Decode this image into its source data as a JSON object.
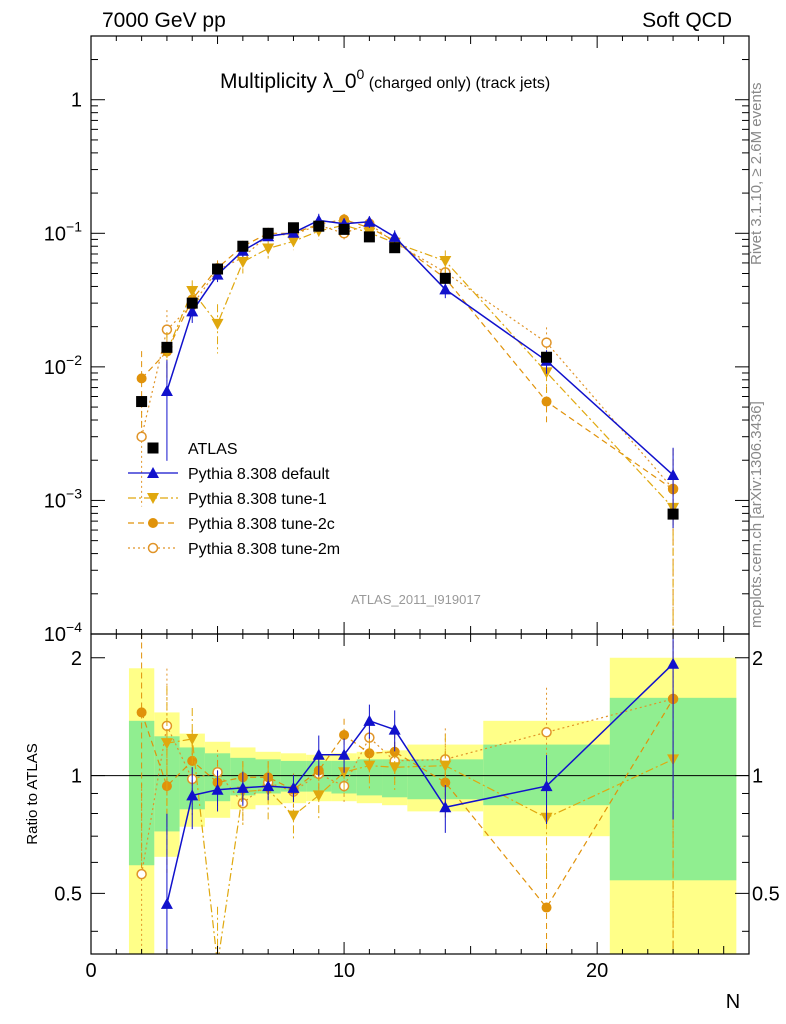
{
  "header": {
    "left": "7000 GeV pp",
    "right": "Soft QCD"
  },
  "side_labels": {
    "top": "Rivet 3.1.10, ≥ 2.6M events",
    "bottom": "mcplots.cern.ch [arXiv:1306.3436]"
  },
  "chart_data": {
    "type": "scatter",
    "title_main": "Multiplicity λ_0",
    "title_sup": "0",
    "title_sub": " (charged only) (track jets)",
    "analysis": "ATLAS_2011_I919017",
    "xlabel": "N",
    "ylabel_ratio": "Ratio to ATLAS",
    "xlim": [
      0,
      26
    ],
    "ylim_main": [
      0.0001,
      3
    ],
    "yscale_main": "log",
    "ylim_ratio": [
      0.35,
      2.3
    ],
    "yscale_ratio": "log",
    "x_ticks": [
      0,
      10,
      20
    ],
    "y_ticks_main": [
      {
        "v": 1,
        "label": "1"
      },
      {
        "v": 0.1,
        "base": "10",
        "exp": "−1"
      },
      {
        "v": 0.01,
        "base": "10",
        "exp": "−2"
      },
      {
        "v": 0.001,
        "base": "10",
        "exp": "−3"
      },
      {
        "v": 0.0001,
        "base": "10",
        "exp": "−4"
      }
    ],
    "y_ticks_ratio": [
      {
        "v": 0.5,
        "label": "0.5"
      },
      {
        "v": 1,
        "label": "1"
      },
      {
        "v": 2,
        "label": "2"
      }
    ],
    "legend_position": "lower-left",
    "bins": [
      {
        "lo": 1.5,
        "hi": 2.5,
        "g": [
          0.59,
          1.38
        ],
        "y": [
          0.35,
          1.88
        ]
      },
      {
        "lo": 2.5,
        "hi": 3.5,
        "g": [
          0.72,
          1.26
        ],
        "y": [
          0.62,
          1.45
        ]
      },
      {
        "lo": 3.5,
        "hi": 4.5,
        "g": [
          0.82,
          1.18
        ],
        "y": [
          0.74,
          1.28
        ]
      },
      {
        "lo": 4.5,
        "hi": 5.5,
        "g": [
          0.86,
          1.14
        ],
        "y": [
          0.78,
          1.22
        ]
      },
      {
        "lo": 5.5,
        "hi": 6.5,
        "g": [
          0.89,
          1.11
        ],
        "y": [
          0.82,
          1.18
        ]
      },
      {
        "lo": 6.5,
        "hi": 7.5,
        "g": [
          0.9,
          1.1
        ],
        "y": [
          0.84,
          1.15
        ]
      },
      {
        "lo": 7.5,
        "hi": 8.5,
        "g": [
          0.91,
          1.09
        ],
        "y": [
          0.85,
          1.14
        ]
      },
      {
        "lo": 8.5,
        "hi": 9.5,
        "g": [
          0.91,
          1.09
        ],
        "y": [
          0.86,
          1.13
        ]
      },
      {
        "lo": 9.5,
        "hi": 10.5,
        "g": [
          0.9,
          1.09
        ],
        "y": [
          0.86,
          1.14
        ]
      },
      {
        "lo": 10.5,
        "hi": 11.5,
        "g": [
          0.89,
          1.1
        ],
        "y": [
          0.85,
          1.15
        ]
      },
      {
        "lo": 11.5,
        "hi": 12.5,
        "g": [
          0.88,
          1.1
        ],
        "y": [
          0.84,
          1.16
        ]
      },
      {
        "lo": 12.5,
        "hi": 15.5,
        "g": [
          0.87,
          1.1
        ],
        "y": [
          0.81,
          1.2
        ]
      },
      {
        "lo": 15.5,
        "hi": 20.5,
        "g": [
          0.84,
          1.2
        ],
        "y": [
          0.7,
          1.38
        ]
      },
      {
        "lo": 20.5,
        "hi": 25.5,
        "g": [
          0.54,
          1.58
        ],
        "y": [
          0.35,
          2.0
        ]
      }
    ],
    "series": [
      {
        "name": "ATLAS",
        "color": "#000000",
        "marker": "square",
        "line": "none",
        "x": [
          2,
          3,
          4,
          5,
          6,
          7,
          8,
          9,
          10,
          11,
          12,
          14,
          18,
          23
        ],
        "y": [
          0.0055,
          0.014,
          0.03,
          0.054,
          0.08,
          0.1,
          0.11,
          0.113,
          0.107,
          0.094,
          0.078,
          0.046,
          0.0118,
          0.00079
        ]
      },
      {
        "name": "Pythia 8.308 default",
        "color": "#1111cc",
        "marker": "triangle-up",
        "line": "solid",
        "x": [
          3,
          4,
          5,
          6,
          7,
          8,
          9,
          10,
          11,
          12,
          14,
          18,
          23
        ],
        "y": [
          0.0066,
          0.026,
          0.049,
          0.074,
          0.095,
          0.101,
          0.125,
          0.118,
          0.122,
          0.094,
          0.038,
          0.0111,
          0.00155
        ],
        "err": [
          0.7,
          0.18,
          0.12,
          0.1,
          0.08,
          0.08,
          0.12,
          0.1,
          0.1,
          0.12,
          0.14,
          0.2,
          0.6
        ],
        "ratio": [
          0.47,
          0.89,
          0.92,
          0.93,
          0.94,
          0.93,
          1.13,
          1.13,
          1.38,
          1.31,
          0.83,
          0.94,
          1.93
        ]
      },
      {
        "name": "Pythia 8.308 tune-1",
        "color": "#e0a80e",
        "marker": "triangle-down",
        "line": "dashdot",
        "x": [
          3,
          4,
          5,
          6,
          7,
          8,
          9,
          10,
          11,
          12,
          14,
          18,
          23
        ],
        "y": [
          0.013,
          0.037,
          0.021,
          0.061,
          0.077,
          0.087,
          0.104,
          0.115,
          0.101,
          0.085,
          0.062,
          0.0091,
          0.00088
        ],
        "err": [
          0.4,
          0.2,
          0.4,
          0.18,
          0.16,
          0.14,
          0.14,
          0.14,
          0.14,
          0.14,
          0.2,
          0.3,
          1.0
        ],
        "ratio": [
          1.21,
          1.24,
          0.33,
          0.91,
          0.92,
          0.79,
          0.89,
          1.02,
          1.06,
          1.05,
          1.06,
          0.78,
          1.1
        ]
      },
      {
        "name": "Pythia 8.308 tune-2c",
        "color": "#e0920a",
        "marker": "circle",
        "line": "dashed",
        "x": [
          2,
          3,
          4,
          5,
          6,
          7,
          8,
          9,
          10,
          11,
          12,
          14,
          18,
          23
        ],
        "y": [
          0.0082,
          0.013,
          0.032,
          0.055,
          0.08,
          0.1,
          0.1,
          0.117,
          0.127,
          0.11,
          0.088,
          0.046,
          0.0055,
          0.00121
        ],
        "err": [
          0.6,
          0.4,
          0.2,
          0.14,
          0.1,
          0.1,
          0.1,
          0.1,
          0.1,
          0.1,
          0.12,
          0.2,
          0.3,
          1.0
        ],
        "ratio": [
          1.45,
          0.94,
          1.09,
          0.96,
          0.99,
          0.99,
          0.92,
          1.03,
          1.27,
          1.14,
          1.15,
          0.96,
          0.46,
          1.57
        ]
      },
      {
        "name": "Pythia 8.308 tune-2m",
        "color": "#e09428",
        "marker": "circle-open",
        "line": "dotted",
        "x": [
          2,
          3,
          4,
          5,
          6,
          7,
          8,
          9,
          10,
          11,
          12,
          14,
          18,
          23
        ],
        "y": [
          0.003,
          0.019,
          0.029,
          0.053,
          0.066,
          0.097,
          0.098,
          0.115,
          0.1,
          0.118,
          0.085,
          0.051,
          0.0152,
          0.00122
        ],
        "err": [
          0.7,
          0.4,
          0.2,
          0.14,
          0.12,
          0.1,
          0.1,
          0.1,
          0.1,
          0.1,
          0.12,
          0.2,
          0.3,
          1.0
        ],
        "ratio": [
          0.56,
          1.34,
          0.98,
          1.02,
          0.85,
          0.96,
          0.91,
          1.01,
          0.94,
          1.25,
          1.09,
          1.1,
          1.29,
          1.57
        ]
      }
    ]
  }
}
